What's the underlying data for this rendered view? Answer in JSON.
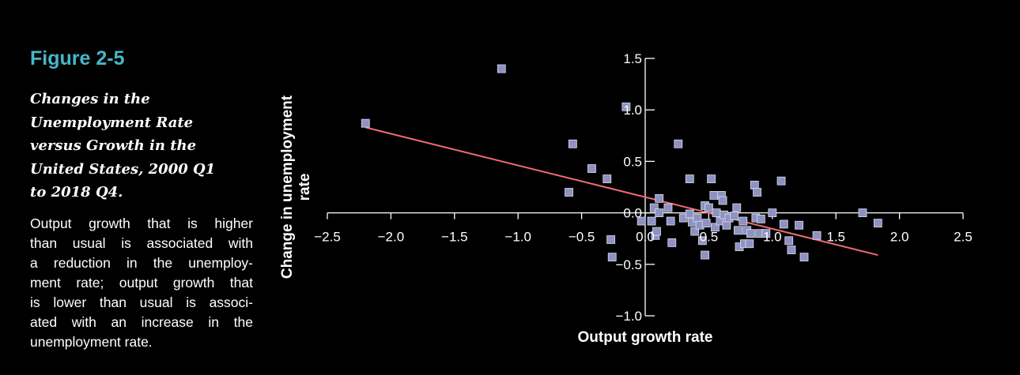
{
  "caption": {
    "figure_label": "Figure 2-5",
    "title_lines": [
      "Changes in the",
      "Unemployment Rate",
      "versus Growth in the",
      "United States, 2000 Q1",
      "to 2018 Q4."
    ],
    "description_lines": [
      "Output growth that is higher",
      "than usual is associated with",
      "a reduction in the unemploy-",
      "ment rate; output growth that",
      "is lower than usual is associ-",
      "ated with an increase in the",
      "unemployment rate."
    ]
  },
  "colors": {
    "figure_label": "#45b8c8",
    "points_fill": "#8e92c2",
    "points_stroke": "#dcdcf0",
    "fit_line": "#f06a74",
    "axis": "#ffffff"
  },
  "chart_data": {
    "type": "scatter",
    "title": "",
    "xlabel": "Output growth rate",
    "ylabel_lines": [
      "Change in unemployment",
      "rate"
    ],
    "xlim": [
      -2.5,
      2.5
    ],
    "ylim": [
      -1.0,
      1.5
    ],
    "xticks": [
      -2.5,
      -2.0,
      -1.5,
      -1.0,
      -0.5,
      0.0,
      0.5,
      1.0,
      1.5,
      2.0,
      2.5
    ],
    "xtick_labels": [
      "−2.5",
      "−2.0",
      "−1.5",
      "−1.0",
      "−0.5",
      "0.0",
      "0.5",
      "1.0",
      "1.5",
      "2.0",
      "2.5"
    ],
    "yticks": [
      -1.0,
      -0.5,
      0.0,
      0.5,
      1.0,
      1.5
    ],
    "ytick_labels": [
      "−1.0",
      "−0.5",
      "0.0",
      "0.5",
      "1.0",
      "1.5"
    ],
    "grid": false,
    "legend": "none",
    "fit_line": {
      "x": [
        -2.2,
        1.83
      ],
      "y": [
        0.83,
        -0.41
      ]
    },
    "points": [
      [
        -2.2,
        0.87
      ],
      [
        -1.13,
        1.4
      ],
      [
        -0.6,
        0.2
      ],
      [
        -0.57,
        0.67
      ],
      [
        -0.42,
        0.43
      ],
      [
        -0.3,
        0.33
      ],
      [
        -0.27,
        -0.26
      ],
      [
        -0.26,
        -0.43
      ],
      [
        -0.15,
        1.03
      ],
      [
        -0.03,
        -0.08
      ],
      [
        0.05,
        -0.08
      ],
      [
        0.07,
        0.05
      ],
      [
        0.08,
        -0.22
      ],
      [
        0.09,
        -0.18
      ],
      [
        0.11,
        0.14
      ],
      [
        0.11,
        0.0
      ],
      [
        0.18,
        0.05
      ],
      [
        0.2,
        -0.08
      ],
      [
        0.21,
        -0.29
      ],
      [
        0.26,
        0.67
      ],
      [
        0.3,
        -0.05
      ],
      [
        0.35,
        -0.01
      ],
      [
        0.35,
        0.33
      ],
      [
        0.37,
        -0.09
      ],
      [
        0.39,
        -0.18
      ],
      [
        0.41,
        -0.05
      ],
      [
        0.43,
        -0.12
      ],
      [
        0.45,
        -0.27
      ],
      [
        0.47,
        0.07
      ],
      [
        0.47,
        -0.41
      ],
      [
        0.48,
        -0.1
      ],
      [
        0.5,
        0.05
      ],
      [
        0.52,
        0.33
      ],
      [
        0.54,
        0.17
      ],
      [
        0.55,
        -0.14
      ],
      [
        0.56,
        0.0
      ],
      [
        0.59,
        -0.08
      ],
      [
        0.6,
        0.17
      ],
      [
        0.61,
        0.12
      ],
      [
        0.62,
        -0.02
      ],
      [
        0.64,
        -0.12
      ],
      [
        0.66,
        -0.05
      ],
      [
        0.7,
        -0.03
      ],
      [
        0.72,
        0.05
      ],
      [
        0.73,
        -0.17
      ],
      [
        0.74,
        -0.33
      ],
      [
        0.77,
        -0.08
      ],
      [
        0.78,
        -0.3
      ],
      [
        0.8,
        -0.17
      ],
      [
        0.82,
        -0.3
      ],
      [
        0.83,
        -0.2
      ],
      [
        0.86,
        0.27
      ],
      [
        0.87,
        -0.05
      ],
      [
        0.88,
        0.2
      ],
      [
        0.9,
        -0.2
      ],
      [
        0.91,
        -0.06
      ],
      [
        0.95,
        -0.2
      ],
      [
        1.0,
        0.0
      ],
      [
        1.07,
        0.31
      ],
      [
        1.09,
        -0.11
      ],
      [
        1.13,
        -0.27
      ],
      [
        1.15,
        -0.36
      ],
      [
        1.21,
        -0.12
      ],
      [
        1.25,
        -0.43
      ],
      [
        1.35,
        -0.22
      ],
      [
        1.71,
        0.0
      ],
      [
        1.83,
        -0.1
      ]
    ]
  }
}
